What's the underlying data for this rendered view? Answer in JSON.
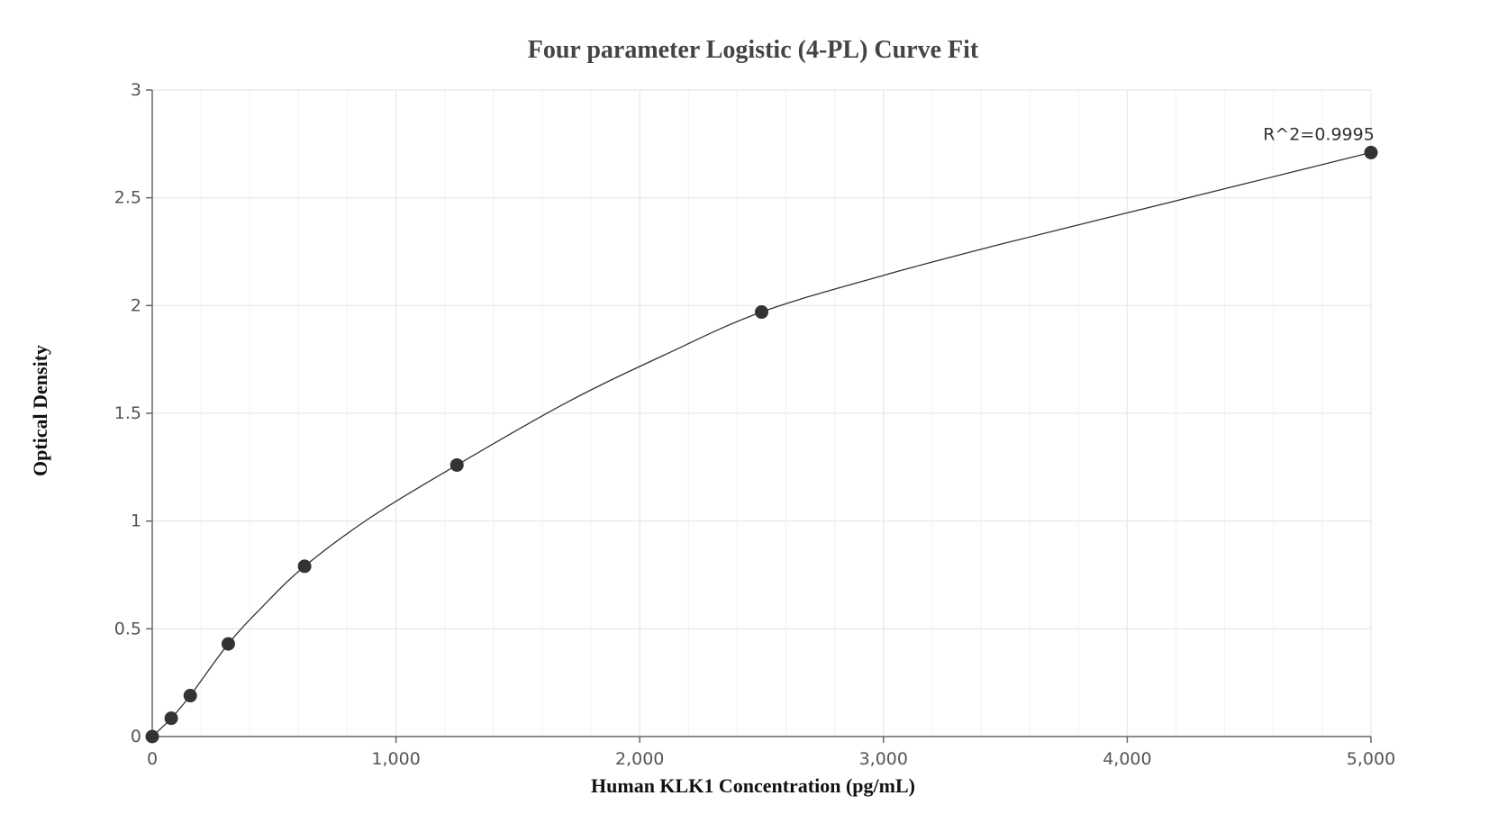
{
  "chart_data": {
    "type": "scatter",
    "title": "Four parameter Logistic (4-PL) Curve Fit",
    "xlabel": "Human KLK1 Concentration (pg/mL)",
    "ylabel": "Optical Density",
    "xlim": [
      0,
      5000
    ],
    "ylim": [
      0,
      3
    ],
    "x_ticks": [
      0,
      1000,
      2000,
      3000,
      4000,
      5000
    ],
    "x_tick_labels": [
      "0",
      "1,000",
      "2,000",
      "3,000",
      "4,000",
      "5,000"
    ],
    "y_ticks": [
      0,
      0.5,
      1,
      1.5,
      2,
      2.5,
      3
    ],
    "y_tick_labels": [
      "0",
      "0.5",
      "1",
      "1.5",
      "2",
      "2.5",
      "3"
    ],
    "grid": true,
    "legend": "none",
    "series": [
      {
        "points": [
          {
            "x": 0,
            "y": 0.0
          },
          {
            "x": 78,
            "y": 0.085
          },
          {
            "x": 156,
            "y": 0.19
          },
          {
            "x": 312,
            "y": 0.43
          },
          {
            "x": 625,
            "y": 0.79
          },
          {
            "x": 1250,
            "y": 1.26
          },
          {
            "x": 2500,
            "y": 1.97
          },
          {
            "x": 5000,
            "y": 2.71
          }
        ]
      }
    ],
    "fit_curve": {
      "model": "4PL",
      "points": [
        {
          "x": 0,
          "y": 0.0
        },
        {
          "x": 78,
          "y": 0.085
        },
        {
          "x": 156,
          "y": 0.19
        },
        {
          "x": 312,
          "y": 0.43
        },
        {
          "x": 450,
          "y": 0.6
        },
        {
          "x": 625,
          "y": 0.79
        },
        {
          "x": 900,
          "y": 1.02
        },
        {
          "x": 1250,
          "y": 1.26
        },
        {
          "x": 1700,
          "y": 1.55
        },
        {
          "x": 2100,
          "y": 1.77
        },
        {
          "x": 2500,
          "y": 1.97
        },
        {
          "x": 3000,
          "y": 2.14
        },
        {
          "x": 3500,
          "y": 2.29
        },
        {
          "x": 4000,
          "y": 2.43
        },
        {
          "x": 4500,
          "y": 2.57
        },
        {
          "x": 5000,
          "y": 2.71
        }
      ]
    },
    "annotations": [
      {
        "text": "R^2=0.9995",
        "x": 5000,
        "y": 2.71
      }
    ],
    "colors": {
      "point": "#333333",
      "curve": "#333333",
      "grid": "#e6e6ee",
      "axis": "#666666"
    }
  }
}
